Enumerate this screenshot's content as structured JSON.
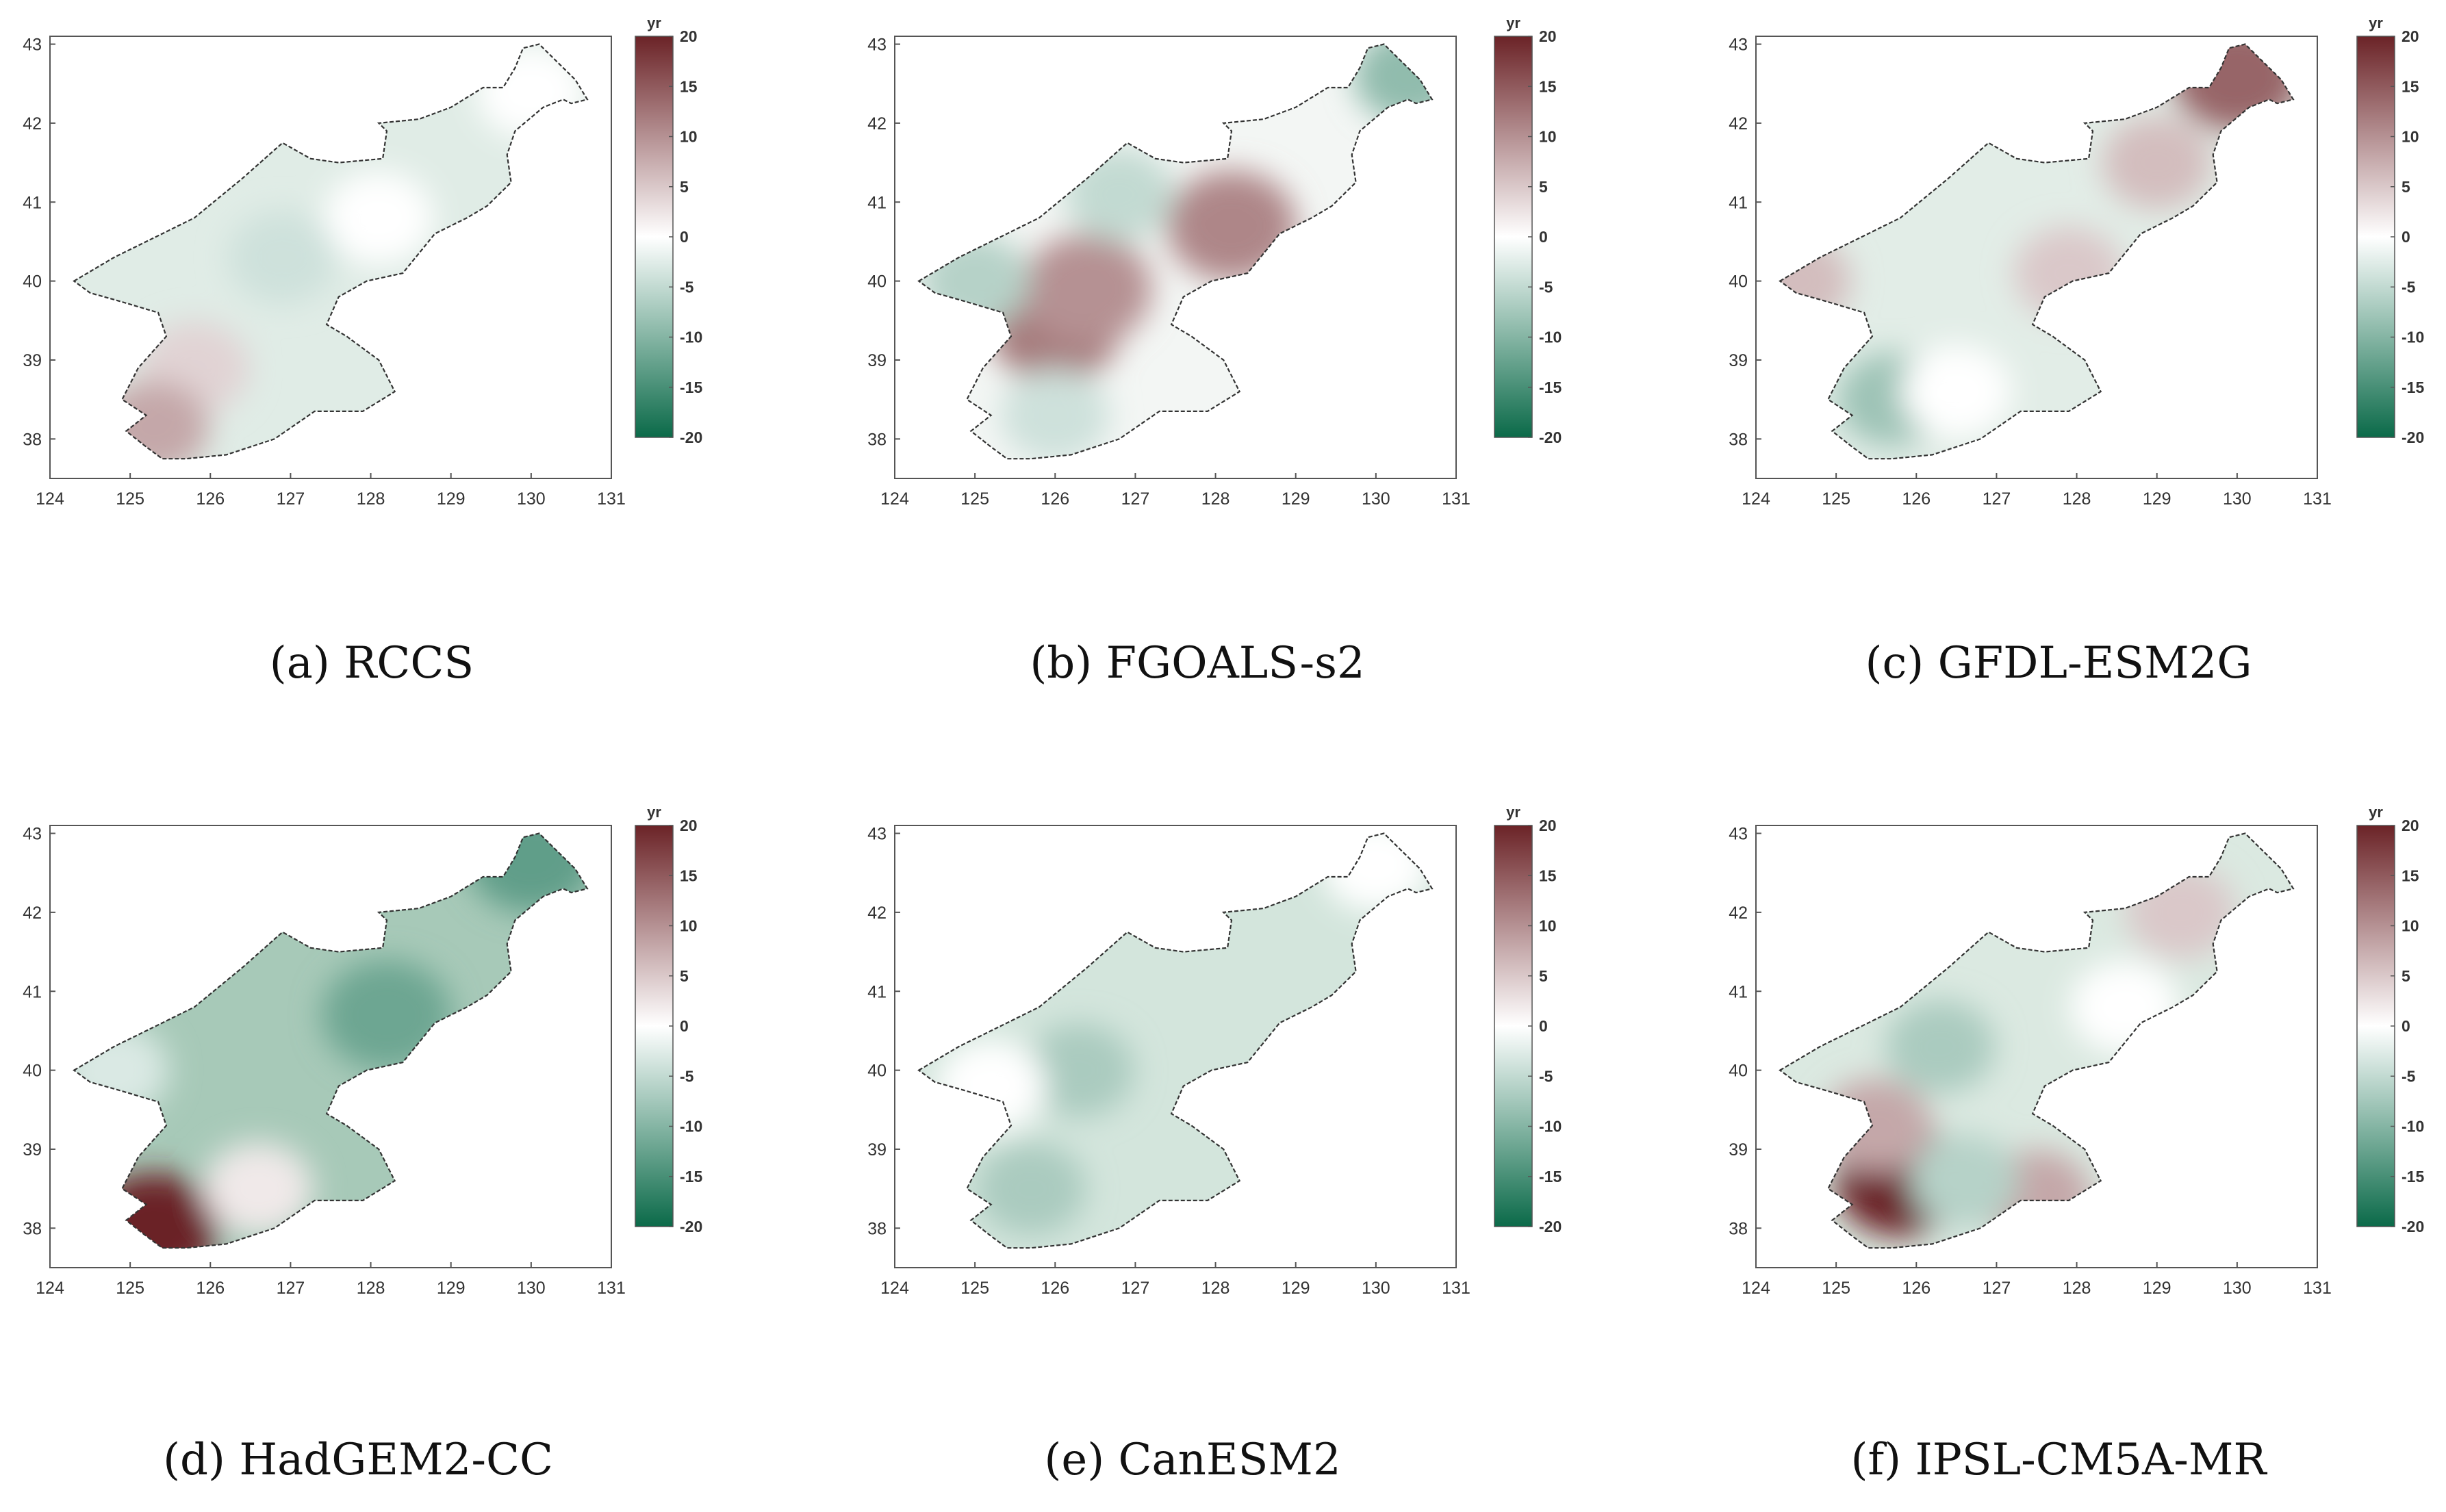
{
  "figure": {
    "colorbar": {
      "unit": "yr",
      "ticks": [
        "20",
        "15",
        "10",
        "5",
        "0",
        "-5",
        "-10",
        "-15",
        "-20"
      ],
      "colors": {
        "max": "#6b2327",
        "mid": "#ffffff",
        "min": "#0b6a49"
      }
    },
    "axes": {
      "x_ticks": [
        "124",
        "125",
        "126",
        "127",
        "128",
        "129",
        "130",
        "131"
      ],
      "y_ticks": [
        "43",
        "42",
        "41",
        "40",
        "39",
        "38"
      ]
    },
    "panels": [
      {
        "id": "a",
        "caption": "(a) RCCS",
        "base": "#e0ece6",
        "blobs": [
          {
            "lon": 125.8,
            "lat": 38.9,
            "value": 4
          },
          {
            "lon": 125.3,
            "lat": 38.15,
            "value": 8
          },
          {
            "lon": 128.1,
            "lat": 40.8,
            "value": 0
          },
          {
            "lon": 130.0,
            "lat": 42.4,
            "value": 0
          },
          {
            "lon": 126.9,
            "lat": 40.3,
            "value": -4
          }
        ]
      },
      {
        "id": "b",
        "caption": "(b) FGOALS-s2",
        "base": "#f3f6f4",
        "blobs": [
          {
            "lon": 126.0,
            "lat": 39.4,
            "value": 12
          },
          {
            "lon": 126.4,
            "lat": 39.9,
            "value": 10
          },
          {
            "lon": 128.2,
            "lat": 40.7,
            "value": 11
          },
          {
            "lon": 125.0,
            "lat": 40.0,
            "value": -6
          },
          {
            "lon": 126.8,
            "lat": 41.1,
            "value": -5
          },
          {
            "lon": 126.0,
            "lat": 38.3,
            "value": -4
          },
          {
            "lon": 130.4,
            "lat": 42.6,
            "value": -9
          }
        ]
      },
      {
        "id": "c",
        "caption": "(c) GFDL-ESM2G",
        "base": "#e2ede7",
        "blobs": [
          {
            "lon": 130.0,
            "lat": 42.6,
            "value": 14
          },
          {
            "lon": 129.0,
            "lat": 41.5,
            "value": 6
          },
          {
            "lon": 124.5,
            "lat": 40.0,
            "value": 6
          },
          {
            "lon": 127.9,
            "lat": 40.1,
            "value": 5
          },
          {
            "lon": 125.7,
            "lat": 38.5,
            "value": -8
          },
          {
            "lon": 126.5,
            "lat": 38.6,
            "value": 0
          }
        ]
      },
      {
        "id": "d",
        "caption": "(d) HadGEM2-CC",
        "base": "#a7c9b8",
        "blobs": [
          {
            "lon": 125.3,
            "lat": 38.0,
            "value": 20
          },
          {
            "lon": 126.6,
            "lat": 38.5,
            "value": 2
          },
          {
            "lon": 128.2,
            "lat": 40.7,
            "value": -12
          },
          {
            "lon": 130.0,
            "lat": 42.7,
            "value": -13
          },
          {
            "lon": 124.8,
            "lat": 40.0,
            "value": -3
          }
        ]
      },
      {
        "id": "e",
        "caption": "(e) CanESM2",
        "base": "#d3e5dc",
        "blobs": [
          {
            "lon": 126.3,
            "lat": 40.0,
            "value": -7
          },
          {
            "lon": 125.7,
            "lat": 38.5,
            "value": -7
          },
          {
            "lon": 125.2,
            "lat": 39.8,
            "value": 0
          },
          {
            "lon": 130.0,
            "lat": 42.6,
            "value": 0
          }
        ]
      },
      {
        "id": "f",
        "caption": "(f) IPSL-CM5A-MR",
        "base": "#dbe9e1",
        "blobs": [
          {
            "lon": 125.8,
            "lat": 38.6,
            "value": 20
          },
          {
            "lon": 125.5,
            "lat": 39.3,
            "value": 8
          },
          {
            "lon": 127.5,
            "lat": 38.4,
            "value": 8
          },
          {
            "lon": 129.3,
            "lat": 42.0,
            "value": 5
          },
          {
            "lon": 128.6,
            "lat": 40.8,
            "value": 0
          },
          {
            "lon": 126.3,
            "lat": 40.3,
            "value": -7
          },
          {
            "lon": 126.6,
            "lat": 38.6,
            "value": -6
          }
        ]
      }
    ]
  }
}
